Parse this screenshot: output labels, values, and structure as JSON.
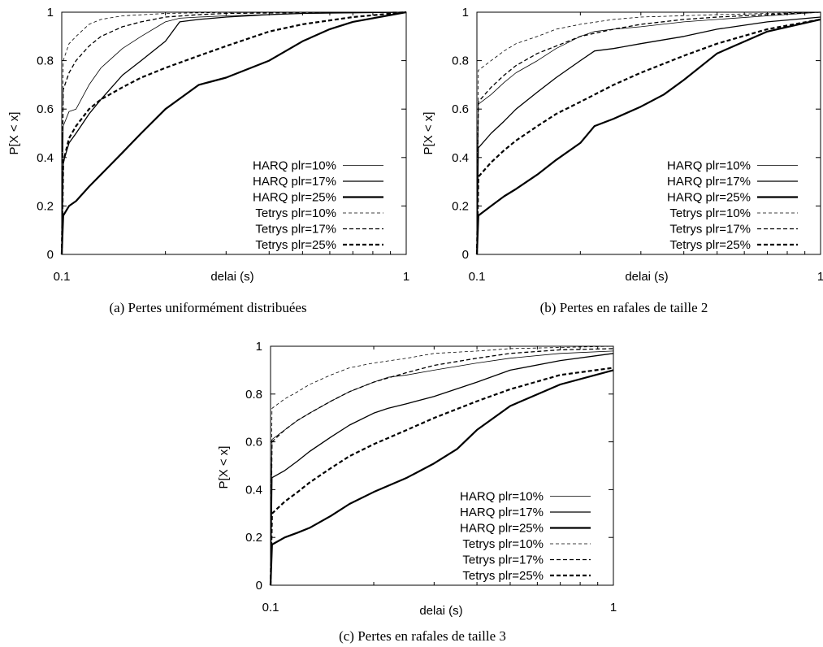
{
  "chart_data": [
    {
      "type": "line",
      "caption": "(a) Pertes uniformément distribuées",
      "xlabel": "delai (s)",
      "ylabel": "P[X < x]",
      "xscale": "log",
      "xlim": [
        0.1,
        1
      ],
      "ylim": [
        0,
        1
      ],
      "xticks": [
        "0.1",
        "1"
      ],
      "yticks": [
        "0",
        "0.2",
        "0.4",
        "0.6",
        "0.8",
        "1"
      ],
      "legend_position": "bottom-right",
      "series": [
        {
          "name": "HARQ plr=10%",
          "style": "thin-solid",
          "x": [
            0.1,
            0.101,
            0.105,
            0.11,
            0.12,
            0.13,
            0.15,
            0.17,
            0.2,
            0.22,
            0.25,
            0.3,
            0.5,
            1
          ],
          "y": [
            0,
            0.53,
            0.59,
            0.6,
            0.7,
            0.77,
            0.85,
            0.9,
            0.96,
            0.975,
            0.98,
            0.985,
            0.995,
            1
          ]
        },
        {
          "name": "HARQ plr=17%",
          "style": "solid",
          "x": [
            0.1,
            0.101,
            0.105,
            0.11,
            0.12,
            0.13,
            0.15,
            0.17,
            0.2,
            0.22,
            0.25,
            0.3,
            0.4,
            0.5,
            1
          ],
          "y": [
            0,
            0.38,
            0.46,
            0.5,
            0.58,
            0.64,
            0.74,
            0.8,
            0.88,
            0.96,
            0.97,
            0.98,
            0.99,
            0.995,
            1
          ]
        },
        {
          "name": "HARQ plr=25%",
          "style": "thick-solid",
          "x": [
            0.1,
            0.101,
            0.105,
            0.11,
            0.12,
            0.13,
            0.15,
            0.17,
            0.2,
            0.25,
            0.3,
            0.4,
            0.5,
            0.6,
            0.7,
            1
          ],
          "y": [
            0,
            0.16,
            0.2,
            0.22,
            0.28,
            0.33,
            0.42,
            0.5,
            0.6,
            0.7,
            0.73,
            0.8,
            0.88,
            0.93,
            0.96,
            1
          ]
        },
        {
          "name": "Tetrys plr=10%",
          "style": "thin-dashed",
          "x": [
            0.1,
            0.101,
            0.105,
            0.11,
            0.12,
            0.13,
            0.15,
            0.2,
            0.3,
            1
          ],
          "y": [
            0,
            0.8,
            0.87,
            0.9,
            0.95,
            0.97,
            0.985,
            0.995,
            0.999,
            1
          ]
        },
        {
          "name": "Tetrys plr=17%",
          "style": "dashed",
          "x": [
            0.1,
            0.101,
            0.105,
            0.11,
            0.12,
            0.13,
            0.15,
            0.17,
            0.2,
            0.25,
            0.3,
            0.5,
            1
          ],
          "y": [
            0,
            0.68,
            0.75,
            0.8,
            0.86,
            0.9,
            0.94,
            0.96,
            0.98,
            0.99,
            0.995,
            0.998,
            1
          ]
        },
        {
          "name": "Tetrys plr=25%",
          "style": "thick-dashed",
          "x": [
            0.1,
            0.101,
            0.105,
            0.11,
            0.12,
            0.13,
            0.15,
            0.17,
            0.2,
            0.25,
            0.3,
            0.4,
            0.5,
            0.7,
            1
          ],
          "y": [
            0,
            0.38,
            0.48,
            0.53,
            0.6,
            0.64,
            0.69,
            0.73,
            0.77,
            0.82,
            0.86,
            0.92,
            0.95,
            0.98,
            1
          ]
        }
      ]
    },
    {
      "type": "line",
      "caption": "(b) Pertes en rafales de taille 2",
      "xlabel": "delai (s)",
      "ylabel": "P[X < x]",
      "xscale": "log",
      "xlim": [
        0.1,
        1
      ],
      "ylim": [
        0,
        1
      ],
      "xticks": [
        "0.1",
        "1"
      ],
      "yticks": [
        "0",
        "0.2",
        "0.4",
        "0.6",
        "0.8",
        "1"
      ],
      "legend_position": "bottom-right",
      "series": [
        {
          "name": "HARQ plr=10%",
          "style": "thin-solid",
          "x": [
            0.1,
            0.101,
            0.11,
            0.12,
            0.13,
            0.15,
            0.17,
            0.2,
            0.22,
            0.25,
            0.3,
            0.4,
            0.5,
            0.7,
            1
          ],
          "y": [
            0,
            0.62,
            0.66,
            0.71,
            0.75,
            0.8,
            0.85,
            0.9,
            0.92,
            0.93,
            0.94,
            0.96,
            0.97,
            0.985,
            1
          ]
        },
        {
          "name": "HARQ plr=17%",
          "style": "solid",
          "x": [
            0.1,
            0.101,
            0.11,
            0.12,
            0.13,
            0.15,
            0.17,
            0.2,
            0.22,
            0.25,
            0.3,
            0.4,
            0.5,
            0.7,
            1
          ],
          "y": [
            0,
            0.44,
            0.5,
            0.55,
            0.6,
            0.67,
            0.73,
            0.8,
            0.84,
            0.85,
            0.87,
            0.9,
            0.93,
            0.96,
            0.98
          ]
        },
        {
          "name": "HARQ plr=25%",
          "style": "thick-solid",
          "x": [
            0.1,
            0.101,
            0.11,
            0.12,
            0.13,
            0.15,
            0.17,
            0.2,
            0.22,
            0.25,
            0.3,
            0.35,
            0.4,
            0.5,
            0.7,
            1
          ],
          "y": [
            0,
            0.16,
            0.2,
            0.24,
            0.27,
            0.33,
            0.39,
            0.46,
            0.53,
            0.56,
            0.61,
            0.66,
            0.72,
            0.83,
            0.92,
            0.97
          ]
        },
        {
          "name": "Tetrys plr=10%",
          "style": "thin-dashed",
          "x": [
            0.1,
            0.101,
            0.11,
            0.12,
            0.13,
            0.15,
            0.17,
            0.2,
            0.25,
            0.3,
            0.5,
            1
          ],
          "y": [
            0,
            0.76,
            0.8,
            0.84,
            0.87,
            0.9,
            0.93,
            0.95,
            0.97,
            0.98,
            0.99,
            1
          ]
        },
        {
          "name": "Tetrys plr=17%",
          "style": "dashed",
          "x": [
            0.1,
            0.101,
            0.11,
            0.12,
            0.13,
            0.15,
            0.17,
            0.2,
            0.25,
            0.3,
            0.4,
            0.5,
            0.7,
            1
          ],
          "y": [
            0,
            0.63,
            0.69,
            0.74,
            0.78,
            0.83,
            0.86,
            0.9,
            0.93,
            0.95,
            0.97,
            0.98,
            0.99,
            1
          ]
        },
        {
          "name": "Tetrys plr=25%",
          "style": "thick-dashed",
          "x": [
            0.1,
            0.101,
            0.11,
            0.12,
            0.13,
            0.15,
            0.17,
            0.2,
            0.25,
            0.3,
            0.4,
            0.5,
            0.7,
            1
          ],
          "y": [
            0,
            0.32,
            0.38,
            0.43,
            0.47,
            0.53,
            0.58,
            0.63,
            0.7,
            0.75,
            0.82,
            0.87,
            0.93,
            0.97
          ]
        }
      ]
    },
    {
      "type": "line",
      "caption": "(c) Pertes en rafales de taille 3",
      "xlabel": "delai (s)",
      "ylabel": "P[X < x]",
      "xscale": "log",
      "xlim": [
        0.1,
        1
      ],
      "ylim": [
        0,
        1
      ],
      "xticks": [
        "0.1",
        "1"
      ],
      "yticks": [
        "0",
        "0.2",
        "0.4",
        "0.6",
        "0.8",
        "1"
      ],
      "legend_position": "bottom-right",
      "series": [
        {
          "name": "HARQ plr=10%",
          "style": "thin-solid",
          "x": [
            0.1,
            0.101,
            0.11,
            0.12,
            0.13,
            0.15,
            0.17,
            0.2,
            0.22,
            0.25,
            0.3,
            0.4,
            0.5,
            0.7,
            1
          ],
          "y": [
            0,
            0.61,
            0.65,
            0.69,
            0.72,
            0.77,
            0.81,
            0.85,
            0.87,
            0.88,
            0.9,
            0.93,
            0.95,
            0.97,
            0.98
          ]
        },
        {
          "name": "HARQ plr=17%",
          "style": "solid",
          "x": [
            0.1,
            0.101,
            0.11,
            0.12,
            0.13,
            0.15,
            0.17,
            0.2,
            0.22,
            0.25,
            0.3,
            0.4,
            0.5,
            0.7,
            1
          ],
          "y": [
            0,
            0.45,
            0.48,
            0.52,
            0.56,
            0.62,
            0.67,
            0.72,
            0.74,
            0.76,
            0.79,
            0.85,
            0.9,
            0.94,
            0.97
          ]
        },
        {
          "name": "HARQ plr=25%",
          "style": "thick-solid",
          "x": [
            0.1,
            0.101,
            0.11,
            0.12,
            0.13,
            0.15,
            0.17,
            0.2,
            0.25,
            0.3,
            0.35,
            0.4,
            0.5,
            0.7,
            1
          ],
          "y": [
            0,
            0.17,
            0.2,
            0.22,
            0.24,
            0.29,
            0.34,
            0.39,
            0.45,
            0.51,
            0.57,
            0.65,
            0.75,
            0.84,
            0.9
          ]
        },
        {
          "name": "Tetrys plr=10%",
          "style": "thin-dashed",
          "x": [
            0.1,
            0.101,
            0.11,
            0.12,
            0.13,
            0.15,
            0.17,
            0.2,
            0.25,
            0.3,
            0.4,
            0.5,
            0.7,
            1
          ],
          "y": [
            0,
            0.74,
            0.78,
            0.81,
            0.84,
            0.88,
            0.91,
            0.93,
            0.95,
            0.97,
            0.98,
            0.99,
            0.995,
            1
          ]
        },
        {
          "name": "Tetrys plr=17%",
          "style": "dashed",
          "x": [
            0.1,
            0.101,
            0.11,
            0.12,
            0.13,
            0.15,
            0.17,
            0.2,
            0.25,
            0.3,
            0.4,
            0.5,
            0.7,
            1
          ],
          "y": [
            0,
            0.6,
            0.65,
            0.69,
            0.72,
            0.77,
            0.81,
            0.85,
            0.89,
            0.92,
            0.95,
            0.97,
            0.985,
            0.99
          ]
        },
        {
          "name": "Tetrys plr=25%",
          "style": "thick-dashed",
          "x": [
            0.1,
            0.101,
            0.11,
            0.12,
            0.13,
            0.15,
            0.17,
            0.2,
            0.25,
            0.3,
            0.4,
            0.5,
            0.7,
            1
          ],
          "y": [
            0,
            0.3,
            0.35,
            0.39,
            0.43,
            0.49,
            0.54,
            0.59,
            0.65,
            0.7,
            0.77,
            0.82,
            0.88,
            0.91
          ]
        }
      ]
    }
  ]
}
